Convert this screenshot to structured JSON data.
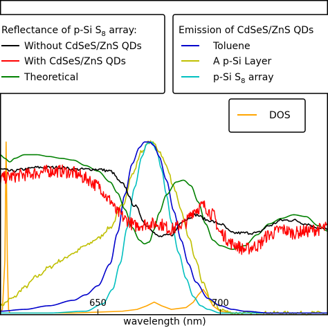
{
  "chart_data": {
    "type": "line",
    "xlabel": "wavelength (nm)",
    "ylabel": "",
    "xlim": [
      610,
      744
    ],
    "ylim": [
      0,
      1
    ],
    "x_ticks": [
      650,
      700
    ],
    "legends": [
      {
        "title_prefix": "Reflectance of p-Si S",
        "title_sub": "8",
        "title_suffix": " array:",
        "entries": [
          {
            "series": "without",
            "text": "Without CdSeS/ZnS QDs"
          },
          {
            "series": "with",
            "text": "With CdSeS/ZnS QDs"
          },
          {
            "series": "theoretical",
            "text": "Theoretical"
          }
        ]
      },
      {
        "title_prefix": "Emission of CdSeS/ZnS QDs",
        "title_sub": "",
        "title_suffix": "",
        "entries": [
          {
            "series": "toluene",
            "text": "Toluene"
          },
          {
            "series": "layer",
            "text": "A p-Si Layer"
          },
          {
            "series": "array",
            "text_prefix": "p-Si S",
            "text_sub": "8",
            "text_suffix": " array"
          }
        ]
      },
      {
        "title_prefix": "",
        "title_sub": "",
        "title_suffix": "",
        "entries": [
          {
            "series": "dos",
            "text": "DOS"
          }
        ]
      }
    ],
    "series": [
      {
        "id": "without",
        "name": "Without CdSeS/ZnS QDs",
        "color": "#000000",
        "noise": 0.008,
        "x": [
          610,
          615,
          620,
          625,
          630,
          635,
          640,
          645,
          650,
          655,
          660,
          665,
          670,
          675,
          680,
          685,
          690,
          695,
          700,
          705,
          710,
          715,
          720,
          725,
          730,
          735,
          740,
          744
        ],
        "y": [
          0.8,
          0.79,
          0.8,
          0.81,
          0.81,
          0.81,
          0.8,
          0.8,
          0.8,
          0.79,
          0.72,
          0.6,
          0.49,
          0.43,
          0.44,
          0.52,
          0.55,
          0.52,
          0.5,
          0.45,
          0.45,
          0.45,
          0.49,
          0.52,
          0.52,
          0.5,
          0.48,
          0.47
        ]
      },
      {
        "id": "with",
        "name": "With CdSeS/ZnS QDs",
        "color": "#ff0000",
        "noise": 0.035,
        "x": [
          610,
          615,
          620,
          625,
          630,
          635,
          640,
          645,
          650,
          655,
          658,
          662,
          665,
          670,
          675,
          680,
          685,
          690,
          693,
          697,
          700,
          705,
          710,
          715,
          720,
          725,
          730,
          735,
          740,
          744
        ],
        "y": [
          0.75,
          0.76,
          0.77,
          0.78,
          0.79,
          0.79,
          0.78,
          0.75,
          0.71,
          0.63,
          0.56,
          0.52,
          0.49,
          0.5,
          0.5,
          0.47,
          0.5,
          0.58,
          0.6,
          0.55,
          0.45,
          0.39,
          0.36,
          0.38,
          0.44,
          0.47,
          0.45,
          0.46,
          0.47,
          0.48
        ]
      },
      {
        "id": "theoretical",
        "name": "Theoretical",
        "color": "#008000",
        "noise": 0,
        "x": [
          610,
          612,
          614,
          616,
          620,
          625,
          630,
          635,
          640,
          645,
          650,
          655,
          658,
          661,
          664,
          667,
          669,
          671,
          673,
          675,
          678,
          682,
          685,
          688,
          691,
          694,
          697,
          700,
          705,
          710,
          715,
          720,
          725,
          730,
          735,
          740,
          744
        ],
        "y": [
          0.88,
          0.86,
          0.84,
          0.86,
          0.88,
          0.88,
          0.87,
          0.86,
          0.85,
          0.82,
          0.79,
          0.73,
          0.67,
          0.58,
          0.48,
          0.41,
          0.39,
          0.4,
          0.47,
          0.56,
          0.66,
          0.73,
          0.74,
          0.71,
          0.62,
          0.5,
          0.41,
          0.38,
          0.36,
          0.38,
          0.44,
          0.5,
          0.53,
          0.55,
          0.54,
          0.49,
          0.46
        ]
      },
      {
        "id": "toluene",
        "name": "Toluene",
        "color": "#0000cc",
        "noise": 0,
        "x": [
          610,
          620,
          630,
          640,
          645,
          650,
          655,
          658,
          661,
          664,
          667,
          669,
          671,
          673,
          675,
          678,
          681,
          684,
          687,
          690,
          695,
          700,
          705,
          710,
          720,
          730,
          744
        ],
        "y": [
          0.02,
          0.03,
          0.05,
          0.08,
          0.11,
          0.16,
          0.28,
          0.45,
          0.66,
          0.83,
          0.92,
          0.95,
          0.95,
          0.93,
          0.87,
          0.74,
          0.57,
          0.41,
          0.28,
          0.18,
          0.09,
          0.05,
          0.03,
          0.02,
          0.01,
          0.01,
          0.01
        ]
      },
      {
        "id": "layer",
        "name": "A p-Si Layer",
        "color": "#bfbf00",
        "noise": 0.01,
        "x": [
          610,
          615,
          620,
          625,
          630,
          635,
          640,
          645,
          650,
          655,
          660,
          664,
          668,
          671,
          673,
          675,
          678,
          681,
          684,
          687,
          690,
          693,
          696,
          700,
          705,
          710,
          744
        ],
        "y": [
          0.05,
          0.09,
          0.15,
          0.21,
          0.26,
          0.3,
          0.34,
          0.38,
          0.42,
          0.48,
          0.6,
          0.77,
          0.9,
          0.95,
          0.94,
          0.9,
          0.82,
          0.7,
          0.57,
          0.43,
          0.3,
          0.17,
          0.08,
          0.03,
          0.01,
          0.01,
          0.01
        ]
      },
      {
        "id": "array",
        "name": "p-Si S8 array",
        "color": "#00bfbf",
        "noise": 0,
        "x": [
          610,
          630,
          645,
          652,
          656,
          659,
          662,
          665,
          668,
          670,
          672,
          674,
          676,
          678,
          680,
          683,
          686,
          689,
          692,
          695,
          700,
          710,
          744
        ],
        "y": [
          0.01,
          0.01,
          0.02,
          0.06,
          0.14,
          0.28,
          0.48,
          0.7,
          0.87,
          0.94,
          0.95,
          0.9,
          0.8,
          0.66,
          0.51,
          0.34,
          0.2,
          0.1,
          0.05,
          0.03,
          0.01,
          0.01,
          0.01
        ]
      },
      {
        "id": "dos",
        "name": "DOS",
        "color": "#ffa500",
        "noise": 0,
        "x": [
          610,
          611,
          612,
          612.5,
          613,
          613.5,
          614,
          615,
          620,
          640,
          660,
          666,
          670,
          673,
          676,
          680,
          686,
          689,
          691,
          693,
          695,
          697,
          700,
          706,
          720,
          744
        ],
        "y": [
          0.01,
          0.03,
          0.3,
          0.95,
          0.3,
          0.03,
          0.01,
          0.01,
          0.01,
          0.01,
          0.02,
          0.03,
          0.05,
          0.07,
          0.05,
          0.03,
          0.04,
          0.07,
          0.11,
          0.14,
          0.1,
          0.05,
          0.02,
          0.01,
          0.01,
          0.01
        ]
      }
    ]
  }
}
